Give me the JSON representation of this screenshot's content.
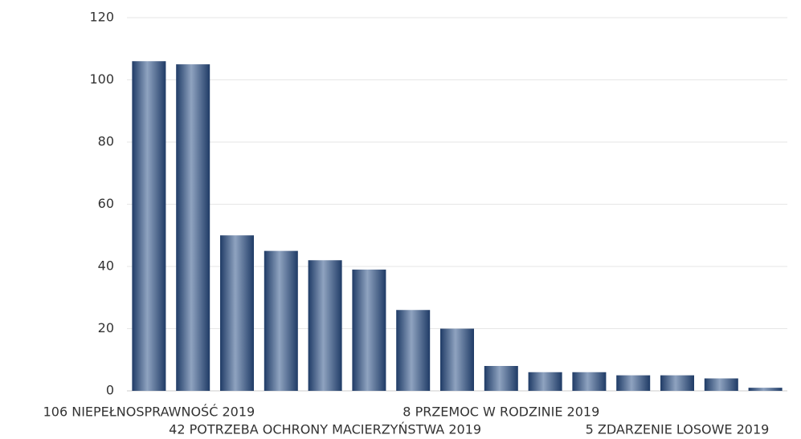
{
  "chart_data": {
    "type": "bar",
    "categories": [
      "106 NIEPEŁNOSPRAWNOŚĆ 2019",
      null,
      null,
      null,
      "42 POTRZEBA OCHRONY MACIERZYŃSTWA 2019",
      null,
      null,
      null,
      "8 PRZEMOC W RODZINIE 2019",
      null,
      null,
      null,
      "5 ZDARZENIE LOSOWE 2019",
      null,
      null
    ],
    "values": [
      106,
      105,
      50,
      45,
      42,
      39,
      26,
      20,
      8,
      6,
      6,
      5,
      5,
      4,
      1
    ],
    "color": "#1f3b66",
    "ylim": [
      0,
      120
    ],
    "yticks": [
      0,
      20,
      40,
      60,
      80,
      100,
      120
    ],
    "grid": true
  }
}
